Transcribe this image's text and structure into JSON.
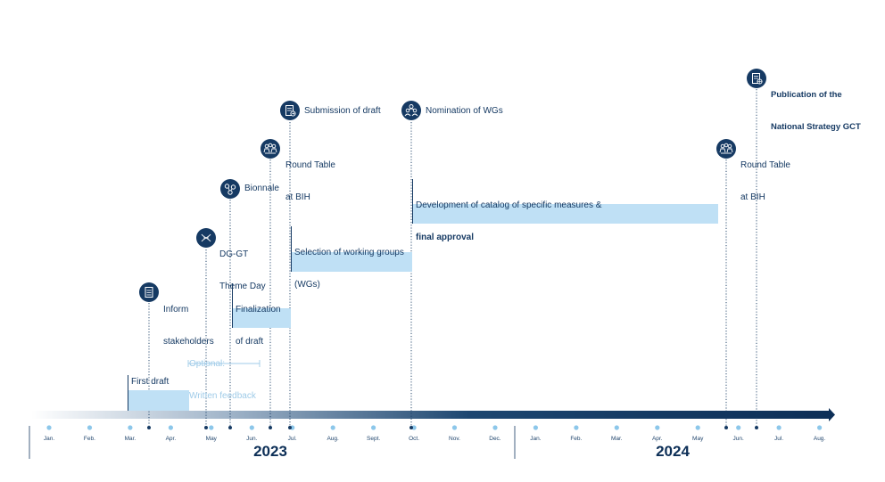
{
  "year_labels": {
    "y2023": "2023",
    "y2024": "2024"
  },
  "months": [
    "Jan.",
    "Feb.",
    "Mar.",
    "Apr.",
    "May",
    "Jun.",
    "Jul.",
    "Aug.",
    "Sept.",
    "Oct.",
    "Nov.",
    "Dec.",
    "Jan.",
    "Feb.",
    "Mar.",
    "Apr.",
    "May",
    "Jun.",
    "Jul.",
    "Aug."
  ],
  "milestones": {
    "first_draft": "First draft",
    "inform_stakeholders": [
      "Inform",
      "stakeholders"
    ],
    "dggt_theme_day": [
      "DG-GT",
      "Theme Day"
    ],
    "bionnale": "Bionnale",
    "round_table_1": [
      "Round Table",
      "at BIH"
    ],
    "submission": "Submission of draft",
    "nomination": "Nomination of WGs",
    "round_table_2": [
      "Round Table",
      "at BIH"
    ],
    "publication": [
      "Publication of the",
      "National Strategy GCT"
    ],
    "finalization": [
      "Finalization",
      "of draft"
    ],
    "selection_wg": [
      "Selection of working groups",
      "(WGs)"
    ],
    "development": "Development of catalog of specific measures &",
    "final_approval": "final approval",
    "optional": [
      "Optional:",
      "Written feedback"
    ]
  },
  "icons": {
    "inform": "document-icon",
    "dggt": "dna-icon",
    "bionnale": "molecule-icon",
    "round_table_1": "people-table-icon",
    "submission": "document-submit-icon",
    "nomination": "group-icon",
    "round_table_2": "people-table-icon",
    "publication": "document-globe-icon"
  },
  "colors": {
    "navy": "#163a63",
    "light_blue": "#bfe0f5",
    "dot_blue": "#8cc7ea",
    "feedback_blue": "#9fcbe8"
  }
}
